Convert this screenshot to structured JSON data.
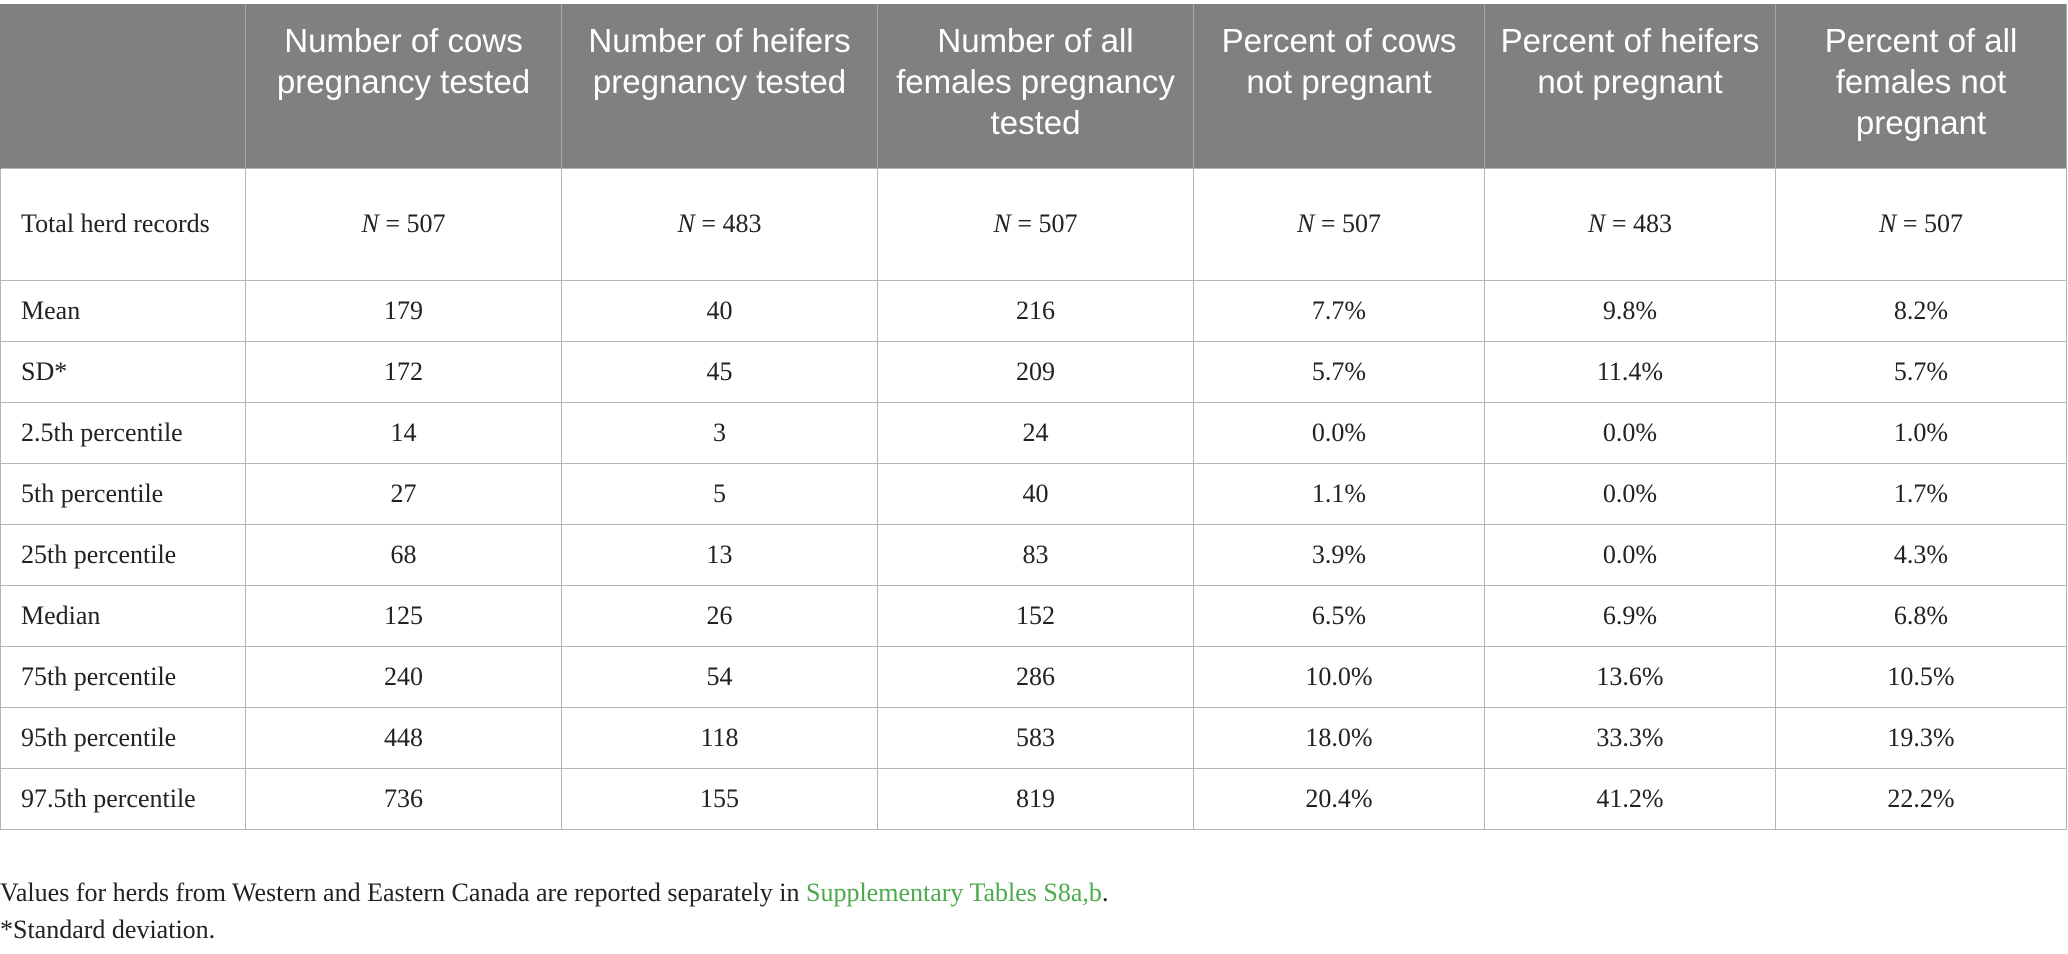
{
  "table": {
    "headers": [
      "",
      "Number of cows pregnancy tested",
      "Number of heifers pregnancy tested",
      "Number of all females pregnancy tested",
      "Percent of cows not pregnant",
      "Percent of heifers not pregnant",
      "Percent of all females not pregnant"
    ],
    "n_row": {
      "label": "Total herd records",
      "values": [
        "507",
        "483",
        "507",
        "507",
        "483",
        "507"
      ]
    },
    "rows": [
      {
        "label": "Mean",
        "values": [
          "179",
          "40",
          "216",
          "7.7%",
          "9.8%",
          "8.2%"
        ]
      },
      {
        "label": "SD*",
        "values": [
          "172",
          "45",
          "209",
          "5.7%",
          "11.4%",
          "5.7%"
        ]
      },
      {
        "label": "2.5th percentile",
        "values": [
          "14",
          "3",
          "24",
          "0.0%",
          "0.0%",
          "1.0%"
        ]
      },
      {
        "label": "5th percentile",
        "values": [
          "27",
          "5",
          "40",
          "1.1%",
          "0.0%",
          "1.7%"
        ]
      },
      {
        "label": "25th percentile",
        "values": [
          "68",
          "13",
          "83",
          "3.9%",
          "0.0%",
          "4.3%"
        ]
      },
      {
        "label": "Median",
        "values": [
          "125",
          "26",
          "152",
          "6.5%",
          "6.9%",
          "6.8%"
        ]
      },
      {
        "label": "75th percentile",
        "values": [
          "240",
          "54",
          "286",
          "10.0%",
          "13.6%",
          "10.5%"
        ]
      },
      {
        "label": "95th percentile",
        "values": [
          "448",
          "118",
          "583",
          "18.0%",
          "33.3%",
          "19.3%"
        ]
      },
      {
        "label": "97.5th percentile",
        "values": [
          "736",
          "155",
          "819",
          "20.4%",
          "41.2%",
          "22.2%"
        ]
      }
    ]
  },
  "footnotes": {
    "line1_prefix": "Values for herds from Western and Eastern Canada are reported separately in ",
    "line1_link": "Supplementary Tables S8a,b",
    "line1_suffix": ".",
    "line2": "*Standard deviation."
  },
  "colors": {
    "header_bg": "#7f8180",
    "header_text": "#ffffff",
    "grid_line": "#b5b5b5",
    "link": "#4caa4c"
  }
}
